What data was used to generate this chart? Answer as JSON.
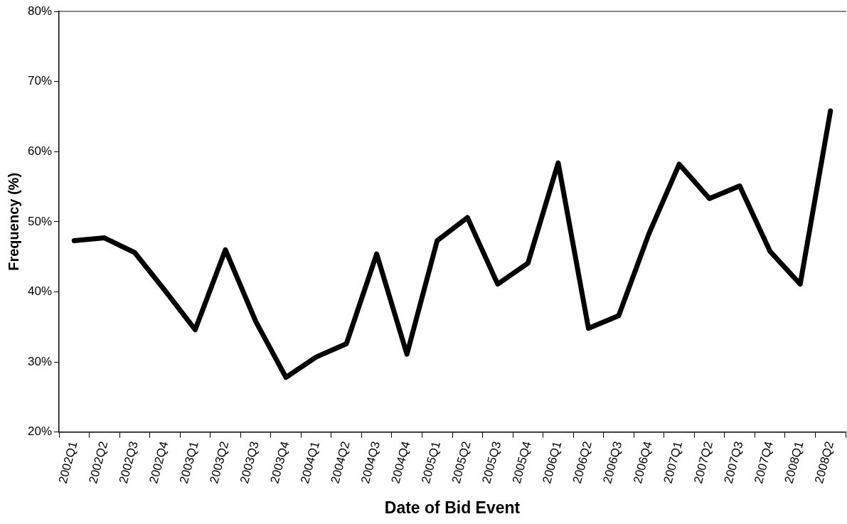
{
  "chart_data": {
    "type": "line",
    "xlabel": "Date of Bid Event",
    "ylabel": "Frequency (%)",
    "categories": [
      "2002Q1",
      "2002Q2",
      "2002Q3",
      "2002Q4",
      "2003Q1",
      "2003Q2",
      "2003Q3",
      "2003Q4",
      "2004Q1",
      "2004Q2",
      "2004Q3",
      "2004Q4",
      "2005Q1",
      "2005Q2",
      "2005Q3",
      "2005Q4",
      "2006Q1",
      "2006Q2",
      "2006Q3",
      "2006Q4",
      "2007Q1",
      "2007Q2",
      "2007Q3",
      "2007Q4",
      "2008Q1",
      "2008Q2"
    ],
    "series": [
      {
        "color": "#000000",
        "values": [
          47.3,
          47.7,
          45.6,
          40.2,
          34.6,
          46.0,
          35.8,
          27.8,
          30.7,
          32.6,
          45.4,
          31.1,
          47.3,
          50.6,
          41.1,
          44.1,
          58.4,
          34.8,
          36.6,
          48.3,
          58.2,
          53.3,
          55.1,
          45.8,
          41.1,
          65.8
        ]
      }
    ],
    "ylim": [
      20,
      80
    ],
    "yticks": [
      {
        "value": 20,
        "label": "20%"
      },
      {
        "value": 30,
        "label": "30%"
      },
      {
        "value": 40,
        "label": "40%"
      },
      {
        "value": 50,
        "label": "50%"
      },
      {
        "value": 60,
        "label": "60%"
      },
      {
        "value": 70,
        "label": "70%"
      },
      {
        "value": 80,
        "label": "80%"
      }
    ],
    "grid": false,
    "legend": false,
    "marker": "none",
    "line_style": "solid"
  }
}
